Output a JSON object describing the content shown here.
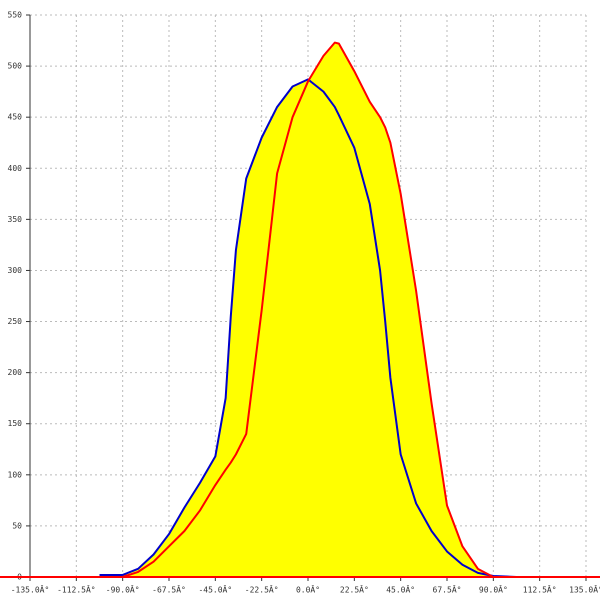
{
  "chart_data": {
    "type": "area",
    "fill": "#ffff00",
    "grid": true,
    "x": [
      -101.25,
      -90,
      -82.5,
      -75,
      -67.5,
      -60,
      -52.5,
      -45,
      -40,
      -37.5,
      -35,
      -30,
      -22.5,
      -15,
      -7.5,
      0,
      7.5,
      13,
      15,
      22.5,
      30,
      35,
      37.5,
      40,
      45,
      52.5,
      60,
      67.5,
      75,
      82.5,
      90,
      101.25
    ],
    "series": [
      {
        "color": "#0000cc",
        "values": [
          2,
          2,
          8,
          22,
          42,
          68,
          92,
          118,
          175,
          255,
          320,
          390,
          430,
          460,
          480,
          487,
          475,
          460,
          452,
          420,
          365,
          300,
          250,
          195,
          120,
          72,
          45,
          25,
          12,
          4,
          1,
          0
        ]
      },
      {
        "color": "#ff0000",
        "values": [
          0,
          0,
          5,
          15,
          30,
          45,
          65,
          90,
          105,
          112,
          120,
          140,
          261,
          395,
          450,
          485,
          510,
          523,
          522,
          495,
          465,
          450,
          440,
          425,
          375,
          280,
          170,
          70,
          30,
          8,
          0,
          0
        ]
      }
    ],
    "xlim": [
      -135,
      135
    ],
    "xticks": [
      {
        "value": -135,
        "label": "-135.0Â°"
      },
      {
        "value": -112.5,
        "label": "-112.5Â°"
      },
      {
        "value": -90,
        "label": "-90.0Â°"
      },
      {
        "value": -67.5,
        "label": "-67.5Â°"
      },
      {
        "value": -45,
        "label": "-45.0Â°"
      },
      {
        "value": -22.5,
        "label": "-22.5Â°"
      },
      {
        "value": 0,
        "label": "0.0Â°"
      },
      {
        "value": 22.5,
        "label": "22.5Â°"
      },
      {
        "value": 45,
        "label": "45.0Â°"
      },
      {
        "value": 67.5,
        "label": "67.5Â°"
      },
      {
        "value": 90,
        "label": "90.0Â°"
      },
      {
        "value": 112.5,
        "label": "112.5Â°"
      },
      {
        "value": 135,
        "label": "135.0Â°"
      }
    ],
    "ylim": [
      0,
      550
    ],
    "yticks": [
      0,
      50,
      100,
      150,
      200,
      250,
      300,
      350,
      400,
      450,
      500,
      550
    ]
  }
}
